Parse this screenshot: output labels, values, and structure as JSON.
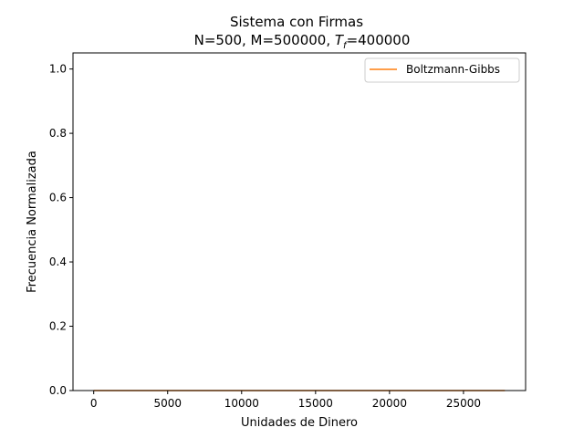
{
  "chart_data": {
    "type": "line",
    "title_line1": "Sistema con Firmas",
    "title_line2_prefix": "N=500, M=500000, ",
    "title_line2_t": "T",
    "title_line2_sub": "f",
    "title_line2_suffix": "=400000",
    "xlabel": "Unidades de Dinero",
    "ylabel": "Frecuencia Normalizada",
    "xlim": [
      -1400,
      29200
    ],
    "ylim": [
      0,
      1.05
    ],
    "xticks": [
      0,
      5000,
      10000,
      15000,
      20000,
      25000
    ],
    "yticks": [
      0.0,
      0.2,
      0.4,
      0.6,
      0.8,
      1.0
    ],
    "xtick_labels": [
      "0",
      "5000",
      "10000",
      "15000",
      "20000",
      "25000"
    ],
    "ytick_labels": [
      "0.0",
      "0.2",
      "0.4",
      "0.6",
      "0.8",
      "1.0"
    ],
    "grid": false,
    "legend_position": "top-right",
    "series": [
      {
        "name": "Boltzmann-Gibbs",
        "color": "#ff7f0e",
        "x": [
          0,
          27800
        ],
        "y": [
          0,
          0
        ]
      }
    ]
  }
}
